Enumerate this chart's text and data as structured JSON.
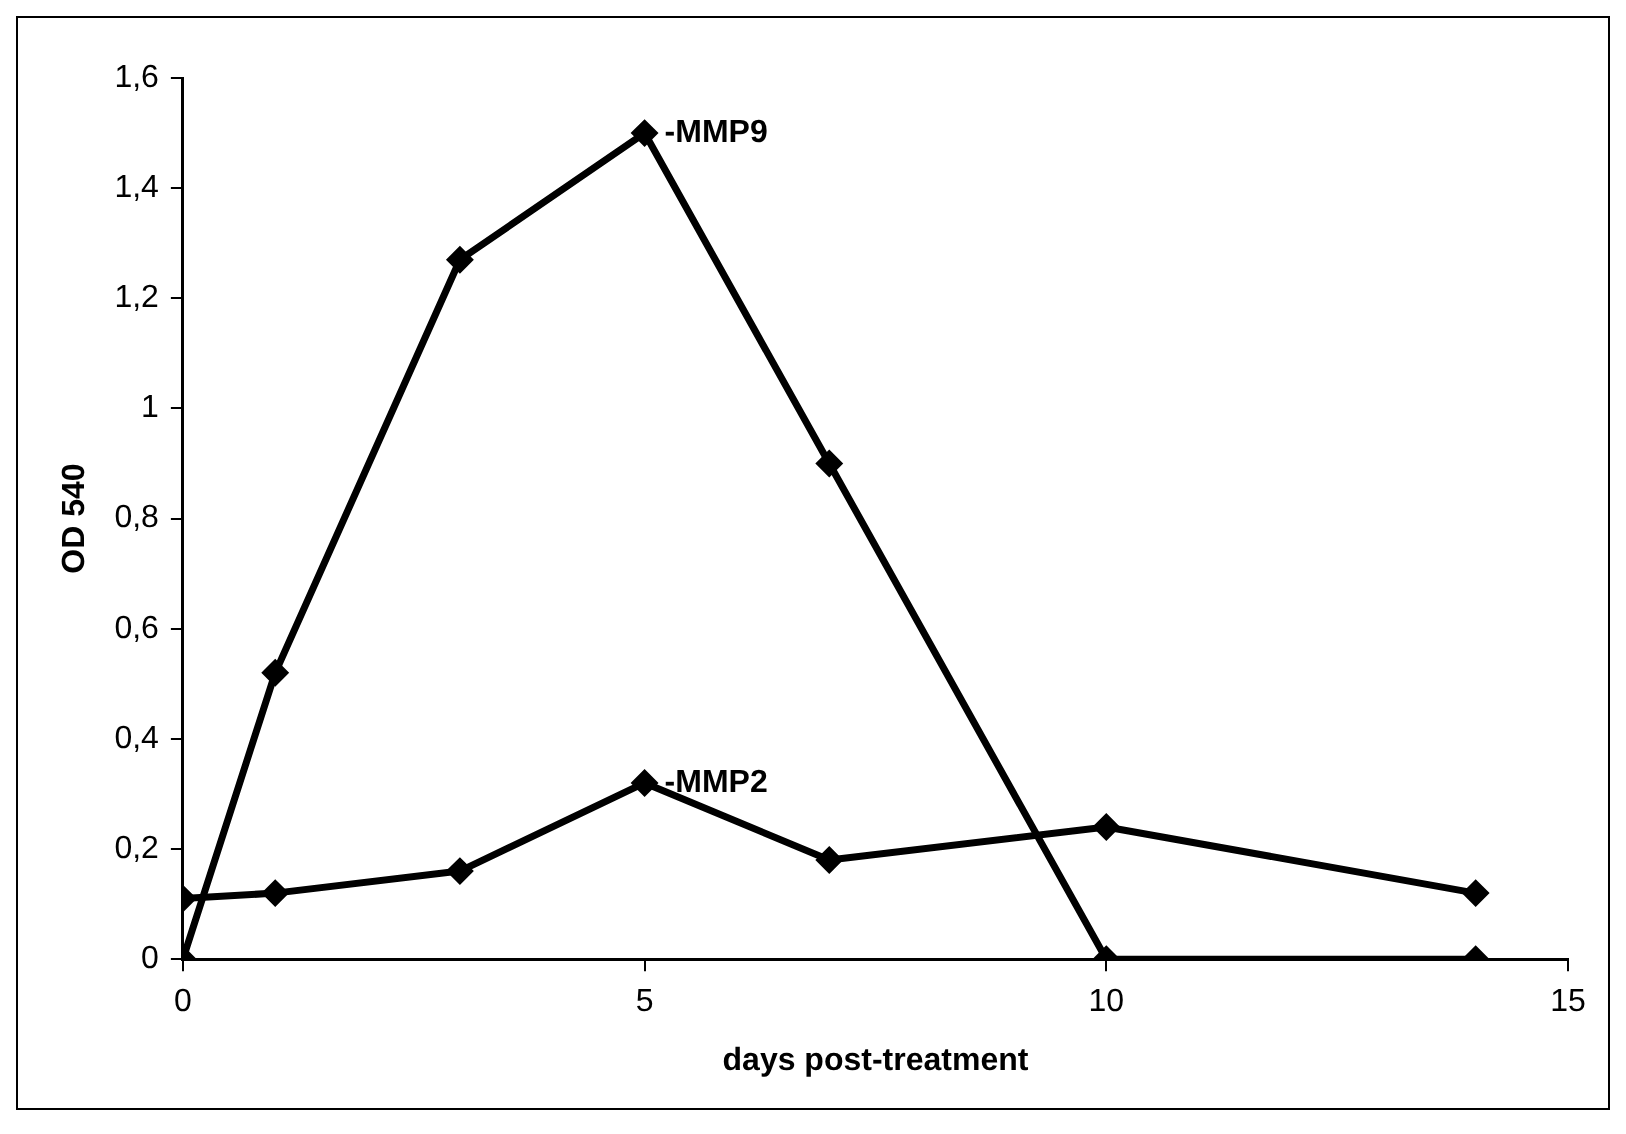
{
  "chart_data": {
    "type": "line",
    "xlabel": "days post-treatment",
    "ylabel": "OD 540",
    "x": [
      0,
      1,
      3,
      5,
      7,
      10,
      14
    ],
    "series": [
      {
        "name": "-MMP9",
        "color": "#000000",
        "values": [
          0,
          0.52,
          1.27,
          1.5,
          0.9,
          0,
          0
        ]
      },
      {
        "name": "-MMP2",
        "color": "#000000",
        "values": [
          0.11,
          0.12,
          0.16,
          0.32,
          0.18,
          0.24,
          0.12
        ]
      }
    ],
    "xlim": [
      0,
      15
    ],
    "xticks": [
      0,
      5,
      10,
      15
    ],
    "ylim": [
      0,
      1.6
    ],
    "yticks": [
      0,
      {
        "value": 0.2,
        "label": "0,2"
      },
      {
        "value": 0.4,
        "label": "0,4"
      },
      {
        "value": 0.6,
        "label": "0,6"
      },
      {
        "value": 0.8,
        "label": "0,8"
      },
      1,
      {
        "value": 1.2,
        "label": "1,2"
      },
      {
        "value": 1.4,
        "label": "1,4"
      },
      {
        "value": 1.6,
        "label": "1,6"
      }
    ],
    "grid": false,
    "legend": false,
    "marker": "diamond",
    "line_style": "solid"
  }
}
